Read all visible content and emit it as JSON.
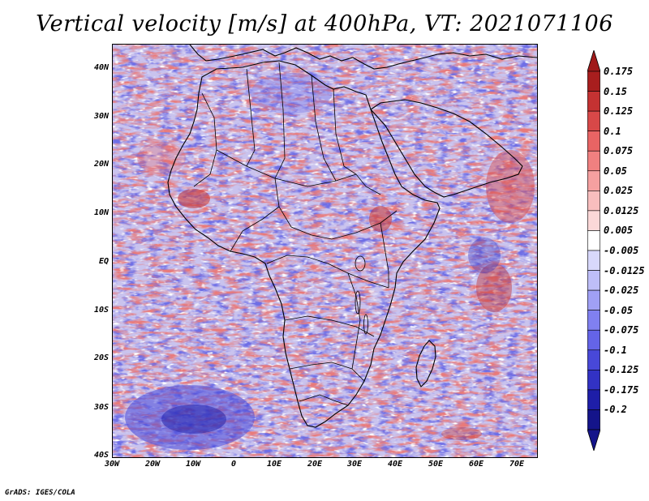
{
  "title": "Vertical velocity [m/s] at 400hPa, VT: 2021071106",
  "credit": "GrADS: IGES/COLA",
  "map": {
    "region": "Africa",
    "field": "Vertical velocity",
    "lat_ticks": [
      "40N",
      "30N",
      "20N",
      "10N",
      "EQ",
      "10S",
      "20S",
      "30S",
      "40S"
    ],
    "lon_ticks": [
      "30W",
      "20W",
      "10W",
      "0",
      "10E",
      "20E",
      "30E",
      "40E",
      "50E",
      "60E",
      "70E"
    ]
  },
  "colorbar": {
    "levels": [
      "0.175",
      "0.15",
      "0.125",
      "0.1",
      "0.075",
      "0.05",
      "0.025",
      "0.0125",
      "0.005",
      "-0.005",
      "-0.0125",
      "-0.025",
      "-0.05",
      "-0.075",
      "-0.1",
      "-0.125",
      "-0.175",
      "-0.2"
    ],
    "colors": [
      "#a81e1e",
      "#c43232",
      "#d84848",
      "#e86464",
      "#f08080",
      "#f5a0a0",
      "#f8bebe",
      "#fbd8d8",
      "#ffffff",
      "#d8d8fb",
      "#bebef8",
      "#a0a0f5",
      "#8080f0",
      "#6464e8",
      "#4848d8",
      "#3232c4",
      "#1e1ea8",
      "#14148a"
    ],
    "top_arrow_color": "#a01a1a",
    "bottom_arrow_color": "#14148a"
  },
  "colors": {
    "warm": "#f0a0a0",
    "cool": "#a8a8f0",
    "coast": "#000000"
  }
}
